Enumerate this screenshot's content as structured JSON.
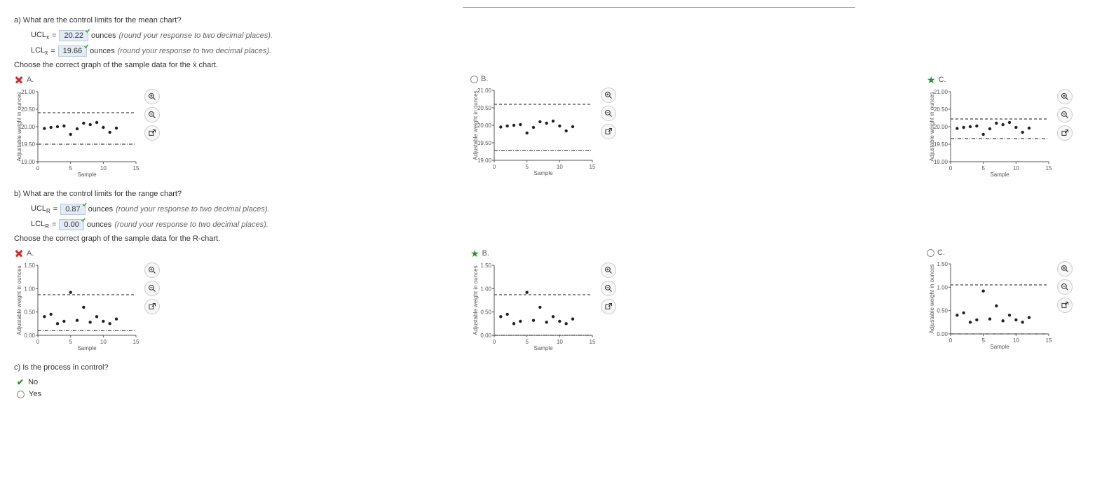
{
  "partA": {
    "prompt": "a) What are the control limits for the mean chart?",
    "ucl": {
      "label_prefix": "UCL",
      "sub": "x̄",
      "eq": "=",
      "value": "20.22",
      "status": "correct",
      "unit": "ounces",
      "hint": "(round your response to two decimal places)."
    },
    "lcl": {
      "label_prefix": "LCL",
      "sub": "x̄",
      "eq": "=",
      "value": "19.66",
      "status": "correct",
      "unit": "ounces",
      "hint": "(round your response to two decimal places)."
    },
    "chooseText": "Choose the correct graph of the sample data for the x̄ chart."
  },
  "partB": {
    "prompt": "b) What are the control limits for the range chart?",
    "ucl": {
      "label_prefix": "UCL",
      "sub": "R",
      "eq": "=",
      "value": "0.87",
      "status": "correct",
      "unit": "ounces",
      "hint": "(round your response to two decimal places)."
    },
    "lcl": {
      "label_prefix": "LCL",
      "sub": "R",
      "eq": "=",
      "value": "0.00",
      "status": "correct",
      "unit": "ounces",
      "hint": "(round your response to two decimal places)."
    },
    "chooseText": "Choose the correct graph of the sample data for the R-chart."
  },
  "partC": {
    "prompt": "c) Is the process in control?",
    "options": [
      {
        "label": "No",
        "state": "selected-correct"
      },
      {
        "label": "Yes",
        "state": "unselected"
      }
    ]
  },
  "xbarCharts": {
    "xlabel": "Sample",
    "ylabel": "Adjustable weight in ounces",
    "xmin": 0,
    "xmax": 15,
    "xticks": [
      0,
      5,
      10,
      15
    ],
    "ymin": 19.0,
    "ymax": 21.0,
    "yticks": [
      19.0,
      19.5,
      20.0,
      20.5,
      21.0
    ],
    "data": [
      {
        "x": 1,
        "y": 19.95
      },
      {
        "x": 2,
        "y": 19.98
      },
      {
        "x": 3,
        "y": 20.0
      },
      {
        "x": 4,
        "y": 20.02
      },
      {
        "x": 5,
        "y": 19.78
      },
      {
        "x": 6,
        "y": 19.94
      },
      {
        "x": 7,
        "y": 20.1
      },
      {
        "x": 8,
        "y": 20.06
      },
      {
        "x": 9,
        "y": 20.12
      },
      {
        "x": 10,
        "y": 19.98
      },
      {
        "x": 11,
        "y": 19.84
      },
      {
        "x": 12,
        "y": 19.96
      }
    ],
    "options": [
      {
        "letter": "A.",
        "state": "wrong",
        "ucl": 20.4,
        "lcl": 19.5
      },
      {
        "letter": "B.",
        "state": "empty",
        "ucl": 20.6,
        "lcl": 19.28
      },
      {
        "letter": "C.",
        "state": "correct",
        "ucl": 20.22,
        "lcl": 19.66
      }
    ]
  },
  "rCharts": {
    "xlabel": "Sample",
    "ylabel": "Adjustable weight in ounces",
    "xmin": 0,
    "xmax": 15,
    "xticks": [
      0,
      5,
      10,
      15
    ],
    "ymin": 0.0,
    "ymax": 1.5,
    "yticks": [
      0.0,
      0.5,
      1.0,
      1.5
    ],
    "data": [
      {
        "x": 1,
        "y": 0.4
      },
      {
        "x": 2,
        "y": 0.45
      },
      {
        "x": 3,
        "y": 0.25
      },
      {
        "x": 4,
        "y": 0.3
      },
      {
        "x": 5,
        "y": 0.92
      },
      {
        "x": 6,
        "y": 0.32
      },
      {
        "x": 7,
        "y": 0.6
      },
      {
        "x": 8,
        "y": 0.28
      },
      {
        "x": 9,
        "y": 0.4
      },
      {
        "x": 10,
        "y": 0.3
      },
      {
        "x": 11,
        "y": 0.25
      },
      {
        "x": 12,
        "y": 0.35
      }
    ],
    "options": [
      {
        "letter": "A.",
        "state": "wrong",
        "ucl": 0.87,
        "lcl": 0.1
      },
      {
        "letter": "B.",
        "state": "correct",
        "ucl": 0.87,
        "lcl": 0.0
      },
      {
        "letter": "C.",
        "state": "empty",
        "ucl": 1.05,
        "lcl": 0.0
      }
    ]
  },
  "style": {
    "axis_color": "#555",
    "grid_color": "#e0e0e0",
    "ucl_color": "#444",
    "lcl_color": "#444",
    "point_color": "#222",
    "point_radius": 2.2,
    "ucl_dash": "4,3",
    "lcl_dash": "5,2,1,2",
    "bg": "#ffffff"
  },
  "tools": {
    "zoomIn": "zoom-in",
    "zoomOut": "zoom-out",
    "popout": "popout"
  }
}
